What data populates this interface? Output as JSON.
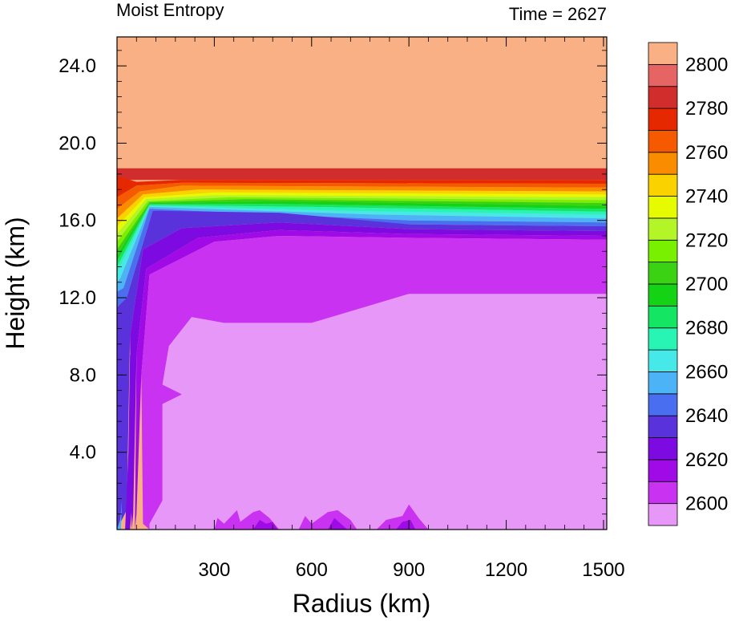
{
  "chart_data": {
    "type": "heatmap",
    "title_left": "Moist Entropy",
    "title_right": "Time = 2627",
    "xlabel": "Radius (km)",
    "ylabel": "Height (km)",
    "xlim": [
      0,
      1510
    ],
    "ylim": [
      0,
      25.5
    ],
    "x_ticks": [
      300,
      600,
      900,
      1200,
      1500
    ],
    "x_tick_labels": [
      "300",
      "600",
      "900",
      "1200",
      "1500"
    ],
    "y_ticks": [
      4,
      8,
      12,
      16,
      20,
      24
    ],
    "y_tick_labels": [
      "4.0",
      "8.0",
      "12.0",
      "16.0",
      "20.0",
      "24.0"
    ],
    "colorbar": {
      "levels": [
        2600,
        2610,
        2620,
        2630,
        2640,
        2650,
        2660,
        2670,
        2680,
        2690,
        2700,
        2710,
        2720,
        2730,
        2740,
        2750,
        2760,
        2770,
        2780,
        2790,
        2800
      ],
      "labels": [
        2600,
        2620,
        2640,
        2660,
        2680,
        2700,
        2720,
        2740,
        2760,
        2780,
        2800
      ],
      "colors": [
        "#e697f8",
        "#c832f0",
        "#a00ae6",
        "#7d0ae0",
        "#5a32dc",
        "#4a6ef0",
        "#4cb4f6",
        "#46e8e8",
        "#28f5b4",
        "#14e664",
        "#14d214",
        "#3cd214",
        "#78f000",
        "#b4f528",
        "#e6fa00",
        "#fad200",
        "#fa8c00",
        "#f55a00",
        "#e62800",
        "#d22d2d",
        "#e66464",
        "#f8b084"
      ]
    },
    "bands_note": "layered contours: [ymin, ymax] in km per level color index"
  }
}
